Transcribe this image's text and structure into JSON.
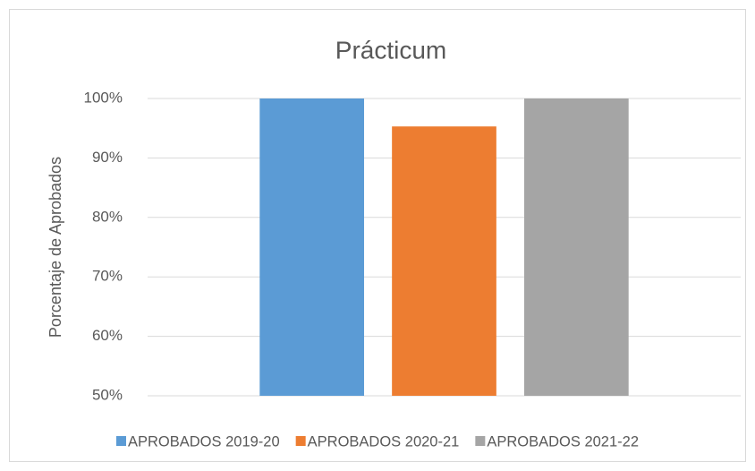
{
  "chart_data": {
    "type": "bar",
    "title": "Prácticum",
    "y_label": "Porcentaje de Aprobados",
    "categories": [
      null
    ],
    "series": [
      {
        "name": "APROBADOS 2019-20",
        "color": "#5b9bd5",
        "values": [
          100
        ]
      },
      {
        "name": "APROBADOS 2020-21",
        "color": "#ed7d31",
        "values": [
          95.3
        ]
      },
      {
        "name": "APROBADOS 2021-22",
        "color": "#a5a5a5",
        "values": [
          100
        ]
      }
    ],
    "ylim": [
      50,
      100
    ],
    "yticks": [
      {
        "value": 50,
        "label": "50%"
      },
      {
        "value": 60,
        "label": "60%"
      },
      {
        "value": 70,
        "label": "70%"
      },
      {
        "value": 80,
        "label": "80%"
      },
      {
        "value": 90,
        "label": "90%"
      },
      {
        "value": 100,
        "label": "100%"
      }
    ],
    "grid": true,
    "legend": "bottom"
  }
}
